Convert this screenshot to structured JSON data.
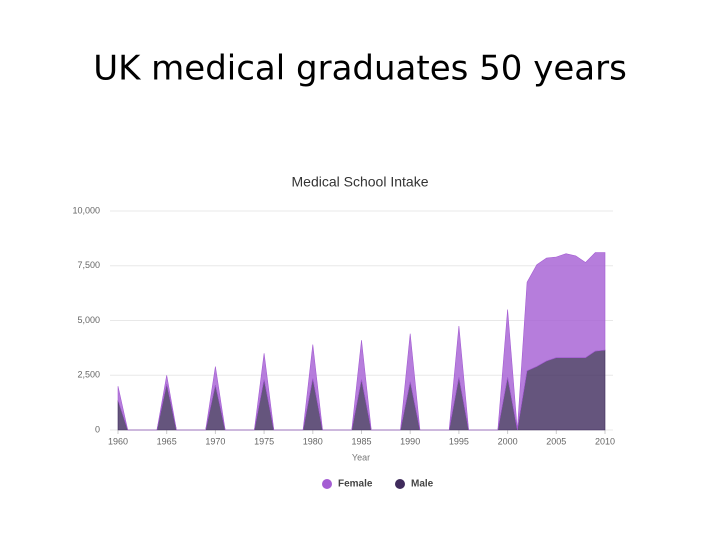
{
  "slide_title": "UK medical graduates 50 years",
  "chart_data": {
    "type": "area",
    "stacked": true,
    "title": "Medical School Intake",
    "xlabel": "Year",
    "x": [
      1960,
      1961,
      1962,
      1963,
      1964,
      1965,
      1966,
      1967,
      1968,
      1969,
      1970,
      1971,
      1972,
      1973,
      1974,
      1975,
      1976,
      1977,
      1978,
      1979,
      1980,
      1981,
      1982,
      1983,
      1984,
      1985,
      1986,
      1987,
      1988,
      1989,
      1990,
      1991,
      1992,
      1993,
      1994,
      1995,
      1996,
      1997,
      1998,
      1999,
      2000,
      2001,
      2002,
      2003,
      2004,
      2005,
      2006,
      2007,
      2008,
      2009,
      2010
    ],
    "series": [
      {
        "name": "Female",
        "color": "#a45dd3",
        "values": [
          650,
          0,
          0,
          0,
          0,
          400,
          0,
          0,
          0,
          0,
          850,
          0,
          0,
          0,
          0,
          1200,
          0,
          0,
          0,
          0,
          1550,
          0,
          0,
          0,
          0,
          1800,
          0,
          0,
          0,
          0,
          2200,
          0,
          0,
          0,
          0,
          2350,
          0,
          0,
          0,
          0,
          3100,
          0,
          4050,
          4650,
          4700,
          4600,
          4750,
          4650,
          4350,
          4500,
          4450
        ]
      },
      {
        "name": "Male",
        "color": "#3f2b5c",
        "values": [
          1350,
          0,
          0,
          0,
          0,
          2100,
          0,
          0,
          0,
          0,
          2050,
          0,
          0,
          0,
          0,
          2300,
          0,
          0,
          0,
          0,
          2350,
          0,
          0,
          0,
          0,
          2300,
          0,
          0,
          0,
          0,
          2200,
          0,
          0,
          0,
          0,
          2400,
          0,
          0,
          0,
          0,
          2400,
          0,
          2700,
          2900,
          3150,
          3300,
          3300,
          3300,
          3300,
          3600,
          3650
        ]
      }
    ],
    "xlim": [
      1960,
      2010
    ],
    "xticks": [
      1960,
      1965,
      1970,
      1975,
      1980,
      1985,
      1990,
      1995,
      2000,
      2005,
      2010
    ],
    "ylim": [
      0,
      10000
    ],
    "yticks": [
      0,
      {
        "value": 2500,
        "label": "2,500"
      },
      {
        "value": 5000,
        "label": "5,000"
      },
      {
        "value": 7500,
        "label": "7,500"
      },
      {
        "value": 10000,
        "label": "10,000"
      }
    ],
    "grid": true,
    "legend": "bottom"
  }
}
